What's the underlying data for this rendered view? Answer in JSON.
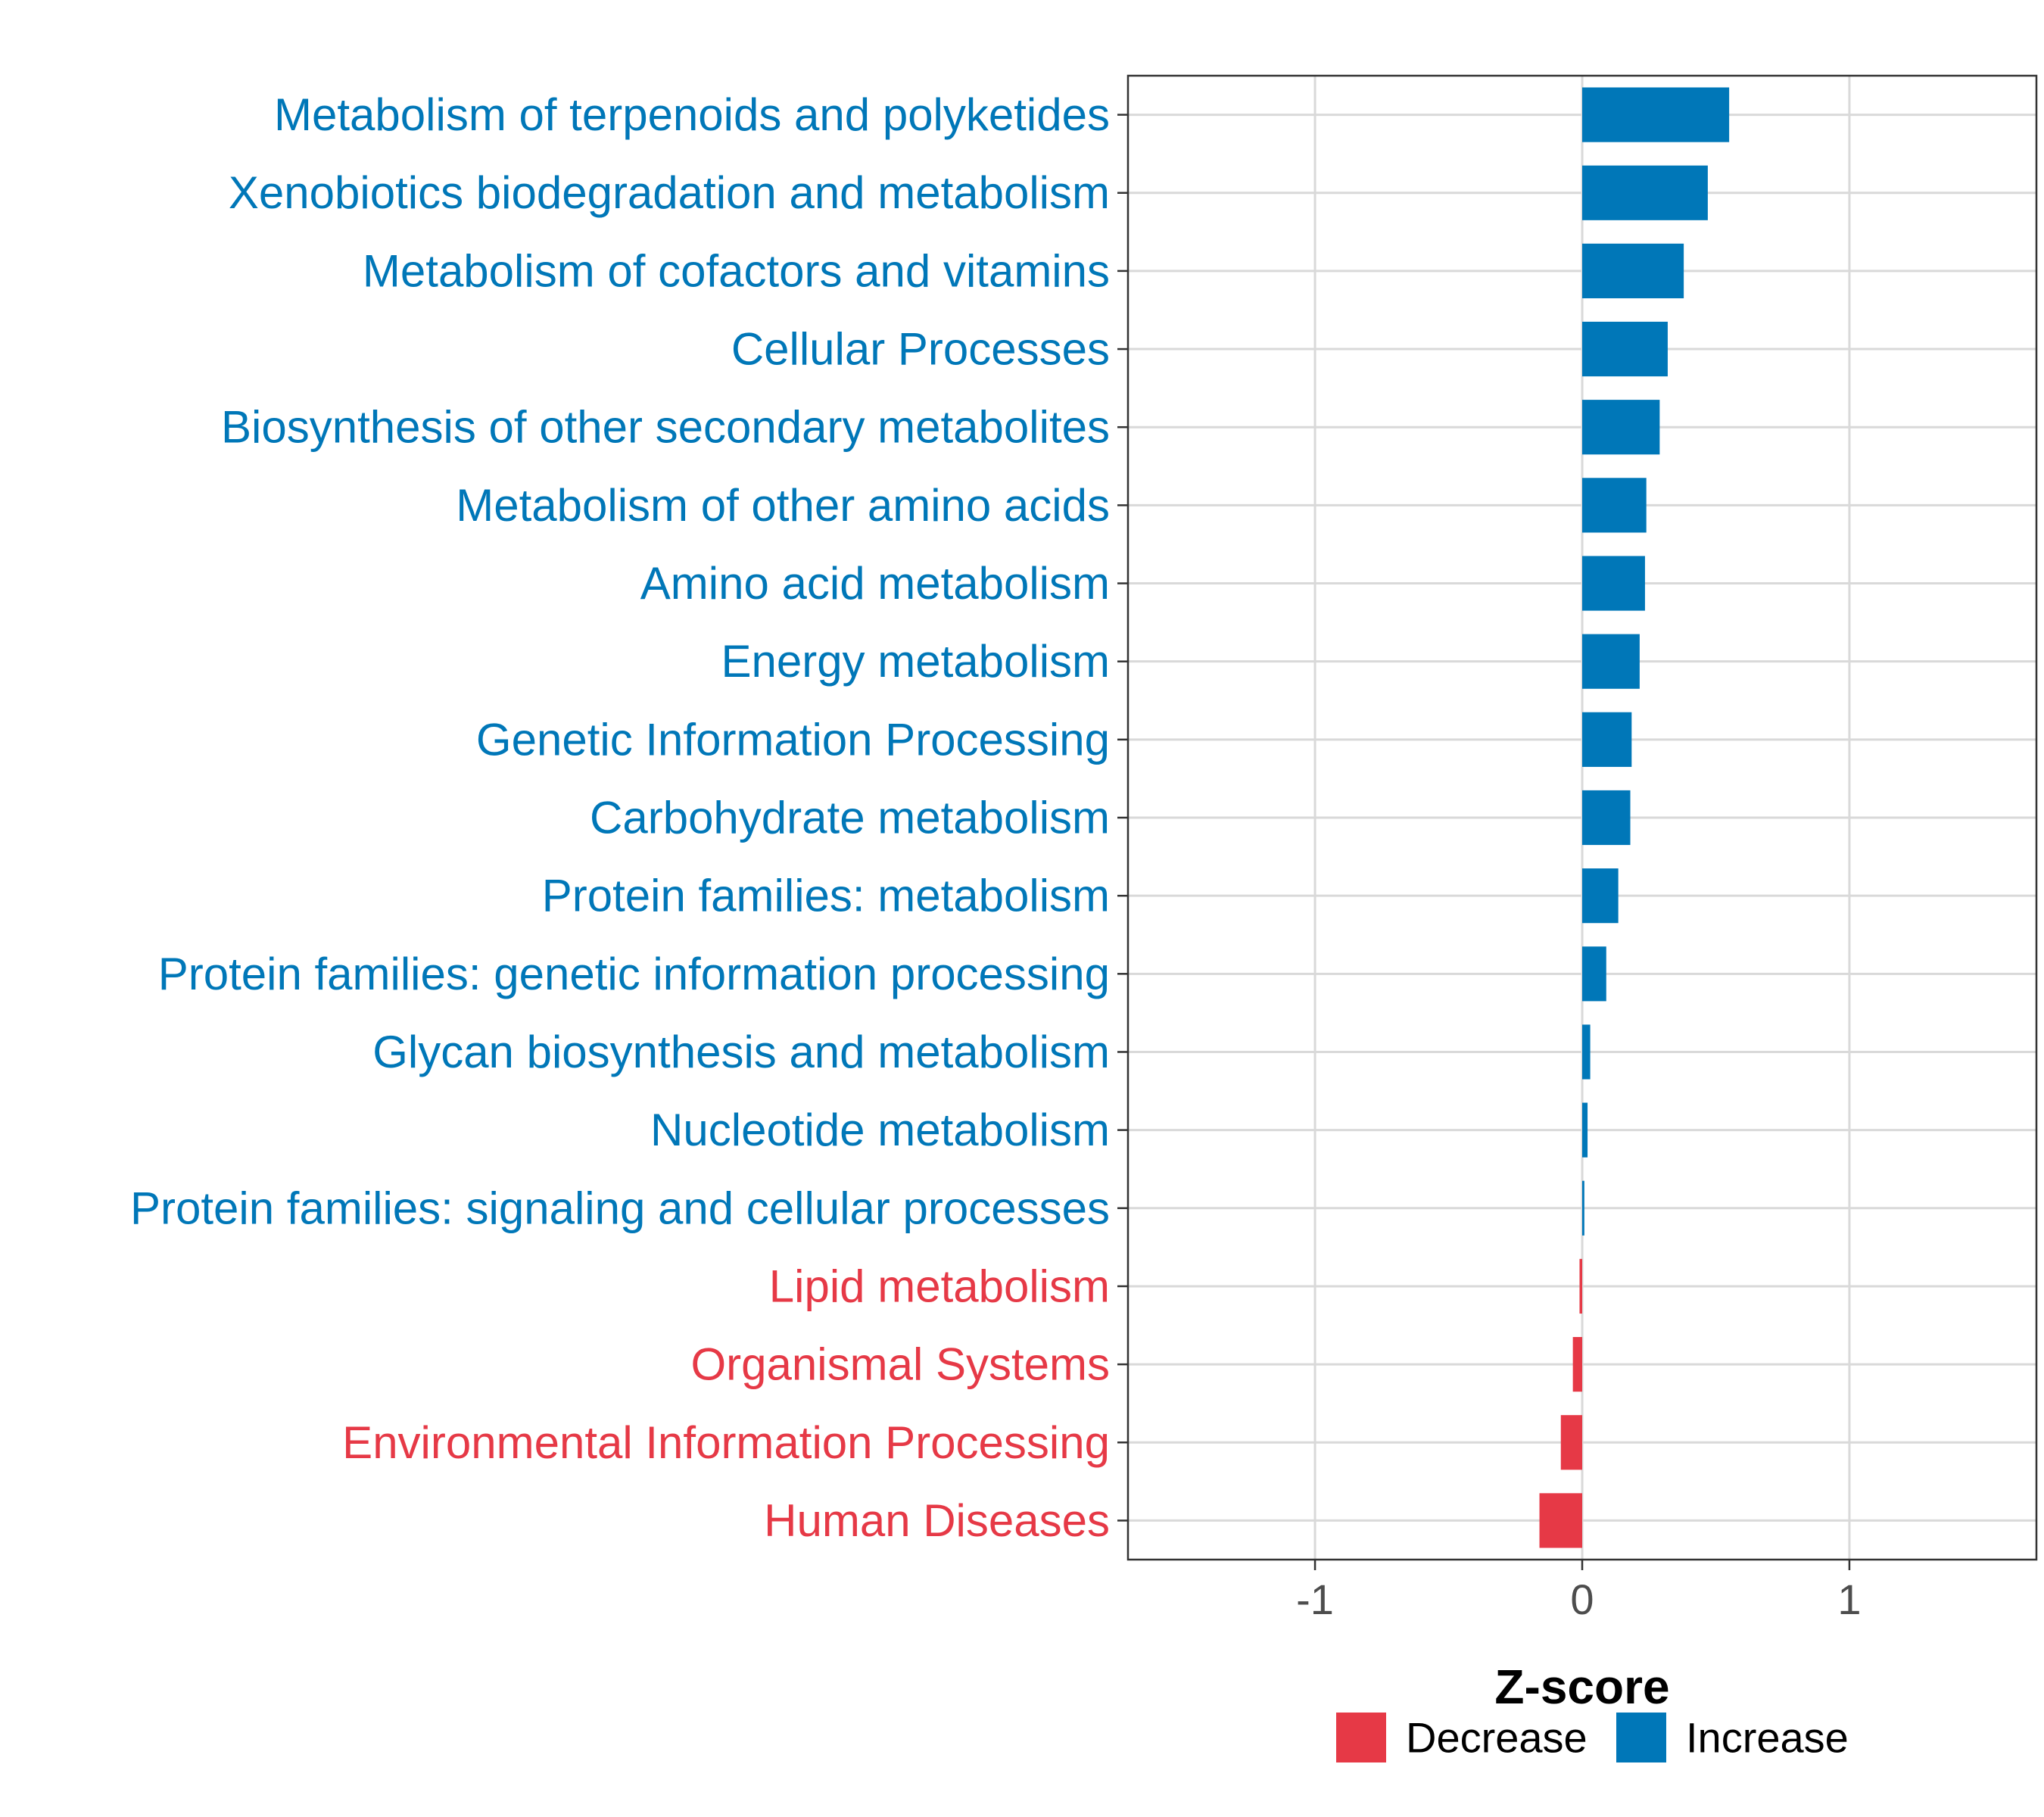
{
  "colors": {
    "increase": "#0077b8",
    "decrease": "#e63946",
    "grid": "#d9d9d9",
    "panel_border": "#333333"
  },
  "chart_data": {
    "type": "bar",
    "orientation": "horizontal",
    "title": "",
    "xlabel": "Z-score",
    "ylabel": "",
    "xlim": [
      -1.7,
      1.7
    ],
    "xticks": [
      -1,
      0,
      1
    ],
    "xtick_labels": [
      "-1",
      "0",
      "1"
    ],
    "grid": true,
    "legend_position": "bottom",
    "legend": [
      {
        "label": "Decrease",
        "color": "#e63946"
      },
      {
        "label": "Increase",
        "color": "#0077b8"
      }
    ],
    "categories": [
      "Metabolism of terpenoids and polyketides",
      "Xenobiotics biodegradation and metabolism",
      "Metabolism of cofactors and vitamins",
      "Cellular Processes",
      "Biosynthesis of other secondary metabolites",
      "Metabolism of other amino acids",
      "Amino acid metabolism",
      "Energy metabolism",
      "Genetic Information Processing",
      "Carbohydrate metabolism",
      "Protein families: metabolism",
      "Protein families: genetic information processing",
      "Glycan biosynthesis and metabolism",
      "Nucleotide metabolism",
      "Protein families: signaling and cellular processes",
      "Lipid metabolism",
      "Organismal Systems",
      "Environmental Information Processing",
      "Human Diseases"
    ],
    "values": [
      0.55,
      0.47,
      0.38,
      0.32,
      0.29,
      0.24,
      0.235,
      0.215,
      0.185,
      0.18,
      0.135,
      0.09,
      0.03,
      0.02,
      0.008,
      -0.01,
      -0.035,
      -0.08,
      -0.16
    ],
    "groups": [
      "Increase",
      "Increase",
      "Increase",
      "Increase",
      "Increase",
      "Increase",
      "Increase",
      "Increase",
      "Increase",
      "Increase",
      "Increase",
      "Increase",
      "Increase",
      "Increase",
      "Increase",
      "Decrease",
      "Decrease",
      "Decrease",
      "Decrease"
    ]
  }
}
